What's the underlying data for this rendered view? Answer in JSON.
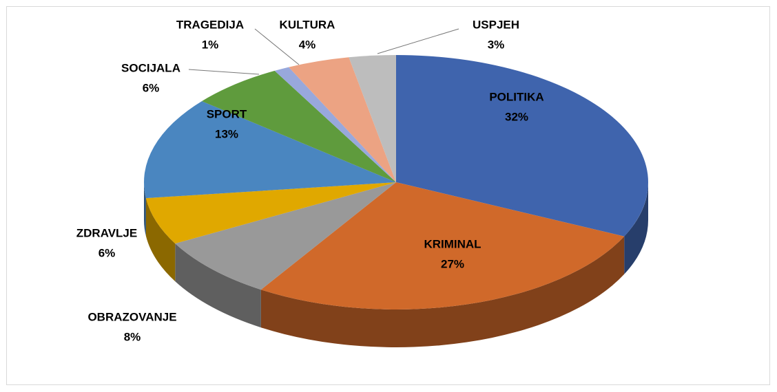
{
  "chart_data": {
    "type": "pie3d",
    "categories": [
      "POLITIKA",
      "KRIMINAL",
      "OBRAZOVANJE",
      "ZDRAVLJE",
      "SPORT",
      "SOCIJALA",
      "TRAGEDIJA",
      "KULTURA",
      "USPJEH"
    ],
    "values": [
      32,
      27,
      8,
      6,
      13,
      6,
      1,
      4,
      3
    ],
    "value_labels": [
      "32%",
      "27%",
      "8%",
      "6%",
      "13%",
      "6%",
      "1%",
      "4%",
      "3%"
    ],
    "colors": [
      "#3f64ad",
      "#d0692a",
      "#999999",
      "#e0a800",
      "#4a86c0",
      "#5f9b3d",
      "#98a8dc",
      "#eca383",
      "#bdbdbd"
    ]
  }
}
